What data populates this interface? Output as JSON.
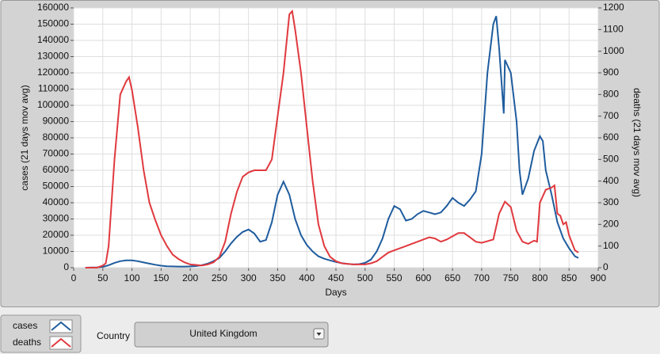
{
  "chart_data": {
    "type": "line",
    "xlabel": "Days",
    "ylabel": "cases  (21 days mov avg)",
    "y2label": "deaths  (21 days mov avg)",
    "xlim": [
      0,
      900
    ],
    "xticks": [
      0,
      50,
      100,
      150,
      200,
      250,
      300,
      350,
      400,
      450,
      500,
      550,
      600,
      650,
      700,
      750,
      800,
      850,
      900
    ],
    "ylim": [
      0,
      160000
    ],
    "yticks": [
      0,
      10000,
      20000,
      30000,
      40000,
      50000,
      60000,
      70000,
      80000,
      90000,
      100000,
      110000,
      120000,
      130000,
      140000,
      150000,
      160000
    ],
    "y2lim": [
      0,
      1200
    ],
    "y2ticks": [
      0,
      100,
      200,
      300,
      400,
      500,
      600,
      700,
      800,
      900,
      1000,
      1100,
      1200
    ],
    "grid": true,
    "series": [
      {
        "name": "cases",
        "color": "#1f5c9e",
        "x": [
          20,
          30,
          40,
          50,
          60,
          70,
          80,
          90,
          100,
          110,
          120,
          130,
          140,
          150,
          160,
          170,
          180,
          190,
          200,
          210,
          220,
          230,
          240,
          250,
          260,
          270,
          280,
          290,
          300,
          310,
          320,
          330,
          340,
          350,
          360,
          370,
          380,
          390,
          400,
          410,
          420,
          430,
          440,
          450,
          460,
          470,
          480,
          490,
          500,
          510,
          520,
          530,
          540,
          550,
          560,
          570,
          580,
          590,
          600,
          610,
          620,
          630,
          640,
          650,
          660,
          670,
          680,
          690,
          700,
          710,
          720,
          725,
          730,
          738,
          740,
          750,
          760,
          765,
          770,
          780,
          790,
          800,
          805,
          810,
          820,
          830,
          840,
          850,
          860,
          866
        ],
        "values": [
          0,
          100,
          200,
          500,
          1500,
          3000,
          4000,
          4500,
          4500,
          4000,
          3200,
          2500,
          1800,
          1200,
          900,
          800,
          700,
          700,
          800,
          1000,
          1500,
          2500,
          4000,
          6000,
          10000,
          15000,
          19000,
          22000,
          23500,
          21000,
          16000,
          17000,
          28000,
          45000,
          53000,
          45000,
          30000,
          20000,
          14000,
          10000,
          7000,
          5500,
          4500,
          3500,
          2800,
          2300,
          2000,
          2200,
          3000,
          5000,
          10000,
          18000,
          30000,
          38000,
          36000,
          29000,
          30000,
          33000,
          35000,
          34000,
          33000,
          34000,
          38000,
          43000,
          40000,
          38000,
          42000,
          47000,
          70000,
          120000,
          150000,
          155000,
          135000,
          95000,
          128000,
          120000,
          90000,
          60000,
          45000,
          55000,
          72000,
          81000,
          78000,
          60000,
          45000,
          28000,
          18000,
          12000,
          7000,
          6000
        ]
      },
      {
        "name": "deaths",
        "color": "#e0393e",
        "axis": "y2",
        "x": [
          20,
          40,
          50,
          55,
          60,
          70,
          80,
          90,
          95,
          100,
          110,
          120,
          130,
          140,
          150,
          160,
          170,
          180,
          190,
          200,
          220,
          230,
          240,
          250,
          260,
          270,
          280,
          290,
          300,
          310,
          330,
          340,
          350,
          360,
          370,
          375,
          380,
          390,
          400,
          410,
          420,
          430,
          440,
          450,
          460,
          480,
          500,
          510,
          520,
          530,
          540,
          550,
          570,
          590,
          610,
          620,
          630,
          640,
          650,
          660,
          670,
          680,
          690,
          700,
          720,
          730,
          740,
          750,
          760,
          770,
          780,
          790,
          795,
          800,
          810,
          820,
          825,
          830,
          835,
          840,
          845,
          850,
          860,
          866
        ],
        "values": [
          0,
          0,
          10,
          20,
          100,
          500,
          800,
          860,
          880,
          820,
          650,
          450,
          300,
          220,
          150,
          100,
          60,
          40,
          25,
          15,
          10,
          15,
          25,
          50,
          120,
          250,
          350,
          420,
          440,
          450,
          450,
          500,
          700,
          900,
          1170,
          1185,
          1100,
          900,
          650,
          400,
          200,
          100,
          50,
          30,
          20,
          15,
          15,
          20,
          30,
          50,
          70,
          80,
          100,
          120,
          140,
          135,
          120,
          130,
          145,
          160,
          160,
          140,
          120,
          115,
          130,
          250,
          305,
          280,
          170,
          120,
          110,
          125,
          120,
          300,
          360,
          370,
          380,
          250,
          240,
          200,
          210,
          150,
          80,
          70
        ]
      }
    ]
  },
  "controls": {
    "country_label": "Country",
    "country_value": "United Kingdom"
  }
}
